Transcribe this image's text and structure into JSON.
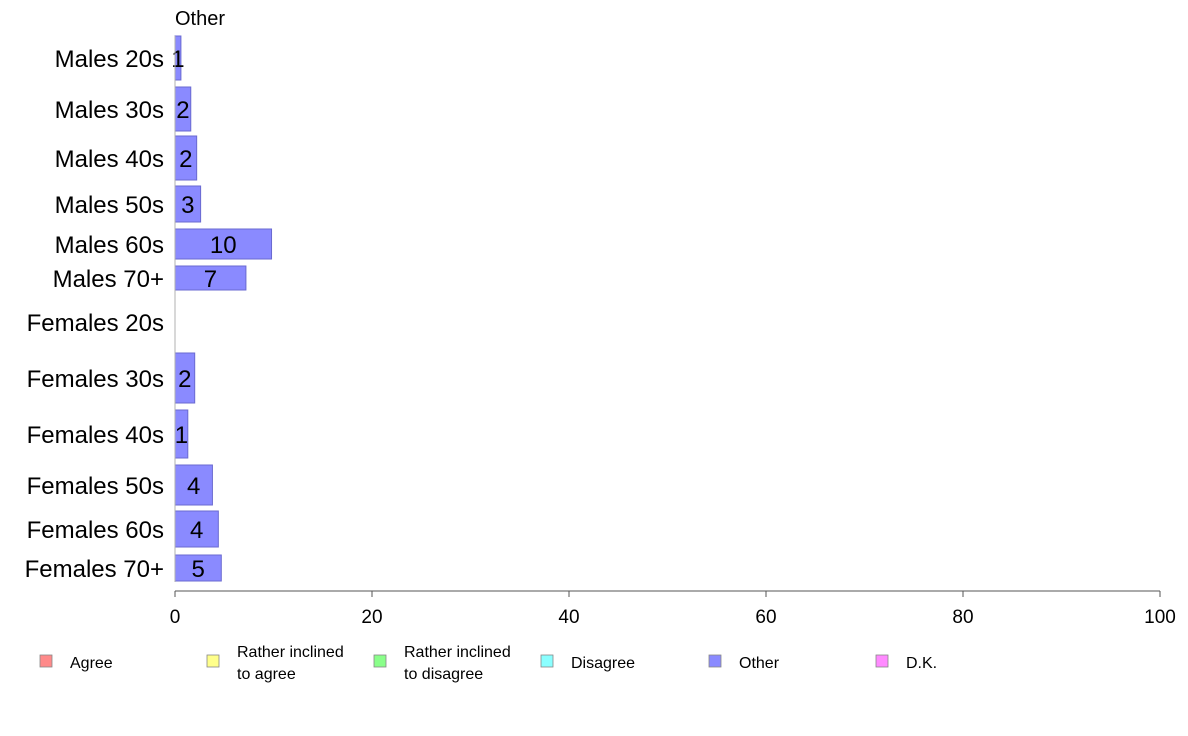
{
  "chart_data": {
    "type": "bar",
    "orientation": "horizontal",
    "title": "Other",
    "categories": [
      "Males 20s",
      "Males 30s",
      "Males 40s",
      "Males 50s",
      "Males 60s",
      "Males 70+",
      "Females 20s",
      "Females 30s",
      "Females 40s",
      "Females 50s",
      "Females 60s",
      "Females 70+"
    ],
    "series": [
      {
        "name": "Other",
        "color": "#8a8aff",
        "values": [
          0.6,
          1.6,
          2.2,
          2.6,
          9.8,
          7.2,
          0,
          2.0,
          1.3,
          3.8,
          4.4,
          4.7
        ],
        "labels": [
          "1",
          "2",
          "2",
          "3",
          "10",
          "7",
          "",
          "2",
          "1",
          "4",
          "4",
          "5"
        ]
      }
    ],
    "xlim": [
      0,
      100
    ],
    "xticks": [
      "0",
      "20",
      "40",
      "60",
      "80",
      "100"
    ],
    "grid": false,
    "legend": {
      "placement": "bottom",
      "items": [
        {
          "label": [
            "Agree"
          ],
          "color": "#ff8a8a"
        },
        {
          "label": [
            "Rather inclined",
            "to agree"
          ],
          "color": "#ffff8a"
        },
        {
          "label": [
            "Rather inclined",
            "to disagree"
          ],
          "color": "#8aff8a"
        },
        {
          "label": [
            "Disagree"
          ],
          "color": "#8affff"
        },
        {
          "label": [
            "Other"
          ],
          "color": "#8a8aff"
        },
        {
          "label": [
            "D.K."
          ],
          "color": "#ff8aff"
        }
      ]
    }
  }
}
